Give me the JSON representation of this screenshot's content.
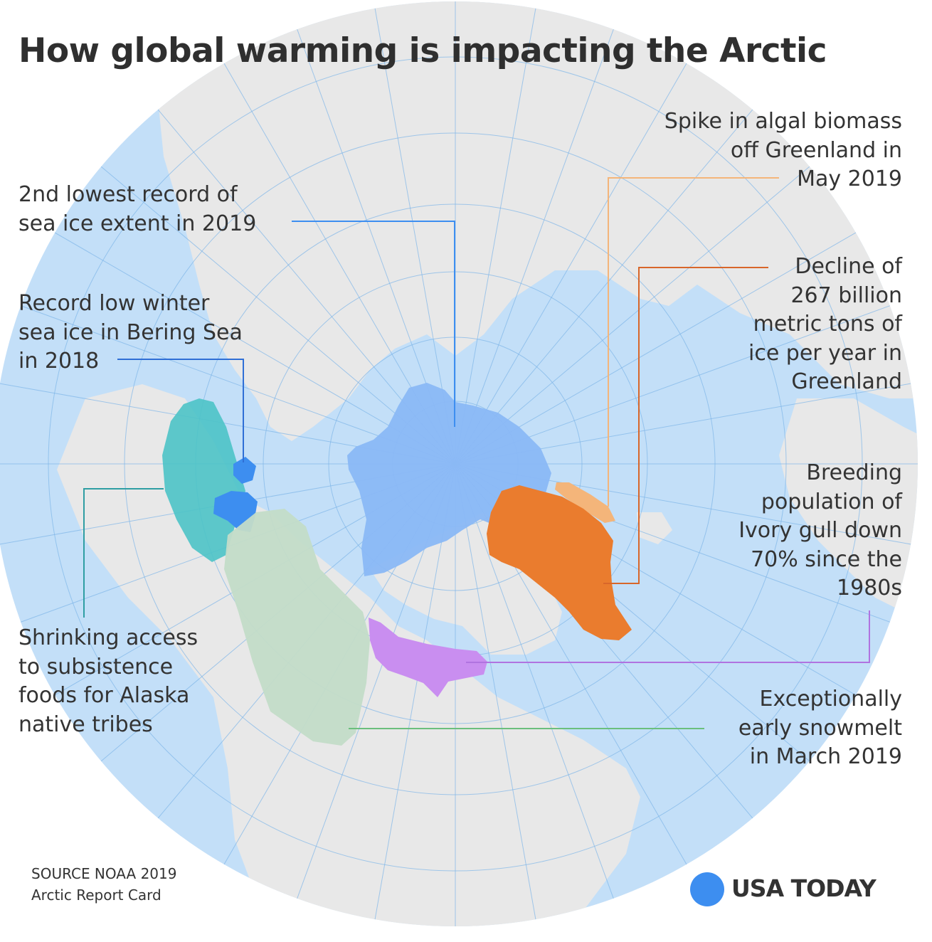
{
  "title": "How global warming is impacting the Arctic",
  "labels": {
    "sea_ice_extent": "2nd lowest record of\nsea ice extent in 2019",
    "bering_sea": "Record low winter\nsea ice in Bering Sea\nin 2018",
    "subsistence": "Shrinking access\nto subsistence\nfoods for Alaska\nnative tribes",
    "algal_biomass": "Spike in algal biomass\noff Greenland in\nMay 2019",
    "greenland_ice": "Decline of\n267 billion\nmetric tons of\nice per year in\nGreenland",
    "ivory_gull": "Breeding\npopulation of\nIvory gull down\n70% since the\n1980s",
    "snowmelt": "Exceptionally\nearly snowmelt\nin March 2019"
  },
  "source": {
    "line1": "SOURCE NOAA 2019",
    "line2": "Arctic Report Card"
  },
  "brand": "USA TODAY",
  "colors": {
    "ocean": "#c3dff8",
    "land": "#e8e8e8",
    "sea_ice": "#8ab8f5",
    "bering": "#3d8ef0",
    "teal": "#4cc3c6",
    "green": "#c3dcc8",
    "orange": "#ea7c2e",
    "algal": "#f4b57a",
    "purple": "#c98ef0",
    "text": "#333333"
  }
}
